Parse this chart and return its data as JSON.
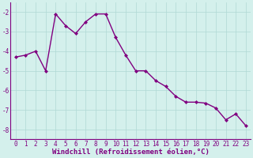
{
  "x": [
    0,
    1,
    2,
    3,
    4,
    5,
    6,
    7,
    8,
    9,
    10,
    11,
    12,
    13,
    14,
    15,
    16,
    17,
    18,
    19,
    20,
    21,
    22,
    23
  ],
  "y": [
    -4.3,
    -4.2,
    -4.0,
    -5.0,
    -2.1,
    -2.7,
    -3.1,
    -2.5,
    -2.1,
    -2.1,
    -3.3,
    -4.2,
    -5.0,
    -5.0,
    -5.5,
    -5.8,
    -6.3,
    -6.6,
    -6.6,
    -6.65,
    -6.9,
    -7.5,
    -7.2,
    -7.8
  ],
  "line_color": "#800080",
  "marker": "D",
  "marker_size": 2,
  "bg_color": "#d4f0ec",
  "grid_color": "#b0d8d4",
  "xlabel": "Windchill (Refroidissement éolien,°C)",
  "ylim": [
    -8.5,
    -1.5
  ],
  "xlim": [
    -0.5,
    23.5
  ],
  "yticks": [
    -8,
    -7,
    -6,
    -5,
    -4,
    -3,
    -2
  ],
  "xticks": [
    0,
    1,
    2,
    3,
    4,
    5,
    6,
    7,
    8,
    9,
    10,
    11,
    12,
    13,
    14,
    15,
    16,
    17,
    18,
    19,
    20,
    21,
    22,
    23
  ],
  "tick_fontsize": 5.5,
  "xlabel_fontsize": 6.5,
  "line_width": 1.0
}
